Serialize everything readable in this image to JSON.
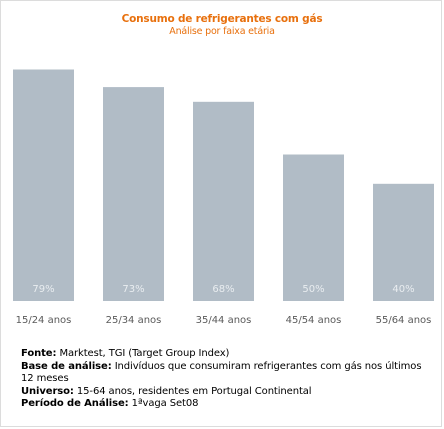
{
  "colors": {
    "title": "#e8700d",
    "bar": "#b1bcc6",
    "bar_label": "#e9edf0",
    "tick_label": "#5a5a5a",
    "notes": "#000000"
  },
  "chart_data": {
    "type": "bar",
    "title": "Consumo de refrigerantes com gás",
    "subtitle": "Análise por faixa etária",
    "categories": [
      "15/24 anos",
      "25/34 anos",
      "35/44 anos",
      "45/54 anos",
      "55/64 anos"
    ],
    "values": [
      79,
      73,
      68,
      50,
      40
    ],
    "data_labels": [
      "79%",
      "73%",
      "68%",
      "50%",
      "40%"
    ],
    "ylim": [
      0,
      100
    ],
    "grid": false,
    "legend": "none"
  },
  "notes": {
    "source_label": "Fonte:",
    "source_text": " Marktest, TGI (Target Group Index)",
    "base_label": "Base de análise:",
    "base_text": " Indivíduos que consumiram refrigerantes com gás nos últimos 12 meses",
    "universe_label": "Universo:",
    "universe_text": " 15-64 anos, residentes em Portugal Continental",
    "period_label": "Período de Análise:",
    "period_text": " 1ªvaga Set08"
  }
}
